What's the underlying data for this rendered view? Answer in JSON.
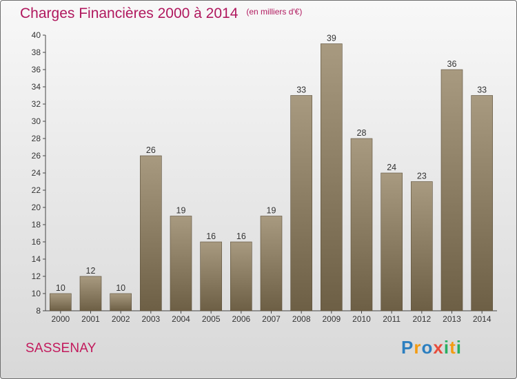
{
  "title": "Charges Financières 2000 à 2014",
  "subtitle": "(en milliers d'€)",
  "town": "SASSENAY",
  "logo": {
    "letters": [
      "P",
      "r",
      "o",
      "x",
      "i",
      "t",
      "i"
    ],
    "colors": [
      "#2c7fc0",
      "#f39c12",
      "#2c7fc0",
      "#e74c3c",
      "#27ae60",
      "#f39c12",
      "#27ae60"
    ]
  },
  "colors": {
    "title": "#b0185e",
    "bar_top": "#a89a80",
    "bar_bottom": "#6d5f45"
  },
  "chart_data": {
    "type": "bar",
    "title": "Charges Financières 2000 à 2014",
    "subtitle": "(en milliers d'€)",
    "categories": [
      "2000",
      "2001",
      "2002",
      "2003",
      "2004",
      "2005",
      "2006",
      "2007",
      "2008",
      "2009",
      "2010",
      "2011",
      "2012",
      "2013",
      "2014"
    ],
    "values": [
      10,
      12,
      10,
      26,
      19,
      16,
      16,
      19,
      33,
      39,
      28,
      24,
      23,
      36,
      33
    ],
    "ylim": [
      8,
      40
    ],
    "yticks": [
      8,
      10,
      12,
      14,
      16,
      18,
      20,
      22,
      24,
      26,
      28,
      30,
      32,
      34,
      36,
      38,
      40
    ],
    "grid": false,
    "data_labels": true
  }
}
